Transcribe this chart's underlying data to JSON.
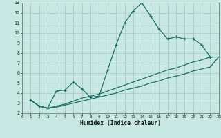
{
  "background_color": "#c8e8e4",
  "grid_color": "#a8ccc8",
  "line_color": "#1a6e64",
  "xlabel": "Humidex (Indice chaleur)",
  "xlim": [
    0,
    23
  ],
  "ylim": [
    2,
    13
  ],
  "xticks": [
    0,
    1,
    2,
    3,
    4,
    5,
    6,
    7,
    8,
    9,
    10,
    11,
    12,
    13,
    14,
    15,
    16,
    17,
    18,
    19,
    20,
    21,
    22,
    23
  ],
  "yticks": [
    2,
    3,
    4,
    5,
    6,
    7,
    8,
    9,
    10,
    11,
    12,
    13
  ],
  "curve_x": [
    1,
    2,
    3,
    4,
    5,
    6,
    7,
    8,
    9,
    10,
    11,
    12,
    13,
    14,
    15,
    16,
    17,
    18,
    19,
    20,
    21,
    22
  ],
  "curve_y": [
    3.3,
    2.7,
    2.5,
    4.2,
    4.3,
    5.1,
    4.4,
    3.6,
    3.7,
    6.3,
    8.8,
    11.0,
    12.2,
    13.0,
    11.7,
    10.4,
    9.4,
    9.6,
    9.4,
    9.4,
    8.8,
    7.6
  ],
  "diag1_x": [
    1,
    2,
    3,
    4,
    5,
    6,
    7,
    8,
    9,
    10,
    11,
    12,
    13,
    14,
    15,
    16,
    17,
    18,
    19,
    20,
    21,
    22,
    23
  ],
  "diag1_y": [
    3.3,
    2.7,
    2.5,
    2.7,
    2.9,
    3.2,
    3.5,
    3.7,
    3.9,
    4.2,
    4.5,
    4.8,
    5.1,
    5.4,
    5.7,
    6.0,
    6.3,
    6.5,
    6.8,
    7.1,
    7.3,
    7.6,
    7.6
  ],
  "diag2_x": [
    1,
    2,
    3,
    4,
    5,
    6,
    7,
    8,
    9,
    10,
    11,
    12,
    13,
    14,
    15,
    16,
    17,
    18,
    19,
    20,
    21,
    22,
    23
  ],
  "diag2_y": [
    3.3,
    2.7,
    2.5,
    2.6,
    2.8,
    3.0,
    3.2,
    3.4,
    3.6,
    3.8,
    4.0,
    4.3,
    4.5,
    4.7,
    5.0,
    5.2,
    5.5,
    5.7,
    5.9,
    6.2,
    6.4,
    6.6,
    7.6
  ]
}
